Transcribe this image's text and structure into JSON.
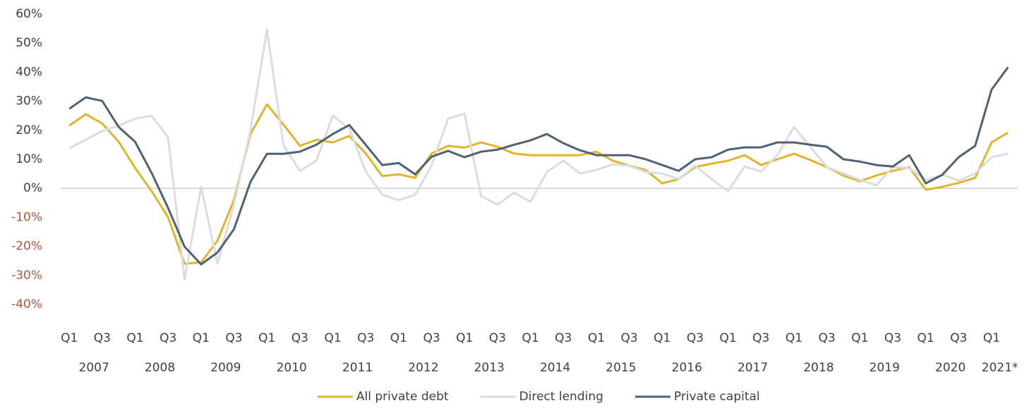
{
  "chart_data": {
    "type": "line",
    "categories": [
      "Q1",
      null,
      "Q3",
      null,
      "Q1",
      null,
      "Q3",
      null,
      "Q1",
      null,
      "Q3",
      null,
      "Q1",
      null,
      "Q3",
      null,
      "Q1",
      null,
      "Q3",
      null,
      "Q1",
      null,
      "Q3",
      null,
      "Q1",
      null,
      "Q3",
      null,
      "Q1",
      null,
      "Q3",
      null,
      "Q1",
      null,
      "Q3",
      null,
      "Q1",
      null,
      "Q3",
      null,
      "Q1",
      null,
      "Q3",
      null,
      "Q1",
      null,
      "Q3",
      null,
      "Q1",
      null,
      "Q3",
      null,
      "Q1",
      null,
      "Q3",
      null,
      "Q1",
      null
    ],
    "years": [
      "2007",
      "2008",
      "2009",
      "2010",
      "2011",
      "2012",
      "2013",
      "2014",
      "2015",
      "2016",
      "2017",
      "2018",
      "2019",
      "2020",
      "2021*"
    ],
    "series": [
      {
        "name": "All private debt",
        "color": "#e2b42a",
        "values": [
          21.6,
          25.5,
          22.3,
          16,
          7,
          -1,
          -10,
          -26,
          -25.5,
          -18,
          -4,
          18.7,
          28.9,
          22,
          14.6,
          16.7,
          15.8,
          18,
          12,
          4.2,
          4.8,
          3.6,
          12,
          14.6,
          14,
          15.8,
          14.3,
          12,
          11.4,
          11.4,
          11.4,
          11.4,
          12.6,
          9.5,
          7.8,
          6.3,
          1.7,
          3.2,
          7.3,
          8.5,
          9.5,
          11.4,
          8,
          10,
          11.9,
          9.7,
          7.3,
          4.4,
          2.4,
          4.4,
          6,
          7.3,
          -0.5,
          0.5,
          1.9,
          3.6,
          15.8,
          19.2
        ]
      },
      {
        "name": "Direct lending",
        "color": "#d9dde2",
        "values": [
          13.8,
          16.7,
          19.7,
          21.6,
          24,
          25,
          17.5,
          -31.5,
          0.5,
          -26,
          -5.6,
          20,
          54.6,
          15,
          6,
          9.5,
          25,
          20.6,
          5.8,
          -2.2,
          -4.1,
          -2.2,
          7.8,
          24,
          25.7,
          -2.7,
          -5.6,
          -1.5,
          -4.6,
          5.6,
          9.5,
          5.1,
          6.3,
          8.3,
          7.8,
          5.6,
          5.1,
          3.2,
          7.8,
          3.2,
          -1,
          7.5,
          5.8,
          11.4,
          21.1,
          14.3,
          7.3,
          5.1,
          2.9,
          1,
          7.3,
          7,
          2.9,
          4.6,
          2.7,
          5.1,
          10.7,
          12
        ]
      },
      {
        "name": "Private capital",
        "color": "#4f6172",
        "values": [
          27.4,
          31.3,
          30.1,
          21.1,
          16,
          5.3,
          -6.8,
          -20.1,
          -26.2,
          -22.1,
          -14.1,
          2.2,
          11.9,
          11.9,
          12.6,
          15,
          18.7,
          21.8,
          15,
          8,
          8.7,
          4.8,
          10.9,
          12.9,
          10.7,
          12.6,
          13.3,
          15,
          16.5,
          18.7,
          15.5,
          13.1,
          11.4,
          11.4,
          11.4,
          10,
          8,
          6,
          10,
          10.7,
          13.3,
          14.1,
          14.1,
          15.8,
          15.8,
          15,
          14.3,
          10,
          9.2,
          8,
          7.5,
          11.4,
          1.7,
          4.6,
          10.7,
          14.6,
          34,
          41.7
        ]
      }
    ],
    "ylim": [
      -40,
      60
    ],
    "yticks": [
      {
        "value": -40,
        "label": "-40%"
      },
      {
        "value": -30,
        "label": "-30%"
      },
      {
        "value": -20,
        "label": "-20%"
      },
      {
        "value": -10,
        "label": "-10%"
      },
      {
        "value": 0,
        "label": "0%"
      },
      {
        "value": 10,
        "label": "10%"
      },
      {
        "value": 20,
        "label": "20%"
      },
      {
        "value": 30,
        "label": "30%"
      },
      {
        "value": 40,
        "label": "40%"
      },
      {
        "value": 50,
        "label": "50%"
      },
      {
        "value": 60,
        "label": "60%"
      }
    ],
    "negative_tick_color": "#b5533c",
    "legend": "bottom"
  }
}
